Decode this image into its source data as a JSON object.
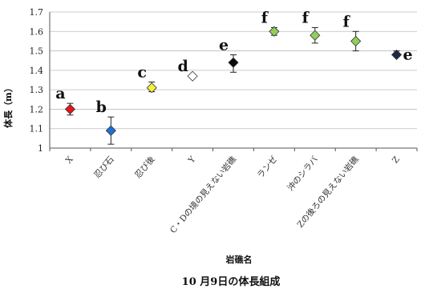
{
  "chart_data": {
    "type": "scatter",
    "title": "10 月9日の体長組成",
    "xlabel": "岩礁名",
    "ylabel": "体長（m）",
    "ylim": [
      1,
      1.7
    ],
    "yticks": [
      1,
      1.1,
      1.2,
      1.3,
      1.4,
      1.5,
      1.6,
      1.7
    ],
    "grid": "horizontal",
    "legend": "none",
    "colors": {
      "red": "#e8141e",
      "blue": "#1f6fd1",
      "yellow": "#f2f23a",
      "white": "#ffffff",
      "black": "#0a0a0a",
      "green": "#8fcf5a",
      "navy": "#1b2a44"
    },
    "points": [
      {
        "category": "X",
        "mean": 1.2,
        "err_low": 1.17,
        "err_high": 1.23,
        "color": "red",
        "letter": "a"
      },
      {
        "category": "忍び石",
        "mean": 1.09,
        "err_low": 1.02,
        "err_high": 1.16,
        "color": "blue",
        "letter": "b"
      },
      {
        "category": "忍び後",
        "mean": 1.31,
        "err_low": 1.29,
        "err_high": 1.34,
        "color": "yellow",
        "letter": "c"
      },
      {
        "category": "Y",
        "mean": 1.37,
        "err_low": 1.37,
        "err_high": 1.37,
        "color": "white",
        "letter": "d"
      },
      {
        "category": "C・Dの境の見えない岩礁",
        "mean": 1.44,
        "err_low": 1.39,
        "err_high": 1.48,
        "color": "black",
        "letter": "e"
      },
      {
        "category": "ランゼ",
        "mean": 1.6,
        "err_low": 1.58,
        "err_high": 1.62,
        "color": "green",
        "letter": "f"
      },
      {
        "category": "沖のシラバ",
        "mean": 1.58,
        "err_low": 1.54,
        "err_high": 1.62,
        "color": "green",
        "letter": "f"
      },
      {
        "category": "Zの後ろの見えない岩礁",
        "mean": 1.55,
        "err_low": 1.5,
        "err_high": 1.6,
        "color": "green",
        "letter": "f"
      },
      {
        "category": "Z",
        "mean": 1.48,
        "err_low": 1.47,
        "err_high": 1.5,
        "color": "navy",
        "letter": "e"
      }
    ]
  }
}
